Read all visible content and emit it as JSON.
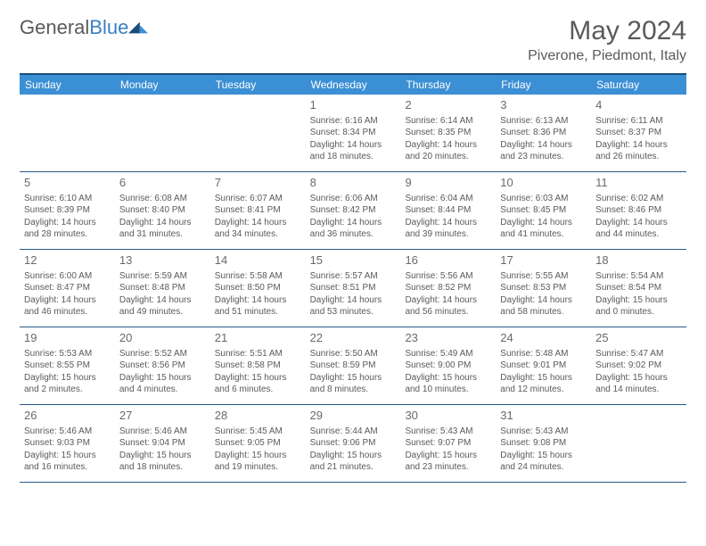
{
  "logo": {
    "text_gray": "General",
    "text_blue": "Blue"
  },
  "title": "May 2024",
  "location": "Piverone, Piedmont, Italy",
  "colors": {
    "header_bg": "#3b8fd4",
    "header_text": "#ffffff",
    "border_dark": "#1a4d7a",
    "row_border": "#2a5a8a",
    "body_text": "#5a5a5a",
    "logo_gray": "#5a5a5a",
    "logo_blue": "#3b7fc4",
    "background": "#ffffff"
  },
  "typography": {
    "title_fontsize": 30,
    "location_fontsize": 16,
    "dayheader_fontsize": 12,
    "daynum_fontsize": 13,
    "body_fontsize": 10
  },
  "day_headers": [
    "Sunday",
    "Monday",
    "Tuesday",
    "Wednesday",
    "Thursday",
    "Friday",
    "Saturday"
  ],
  "weeks": [
    [
      {
        "num": "",
        "sunrise": "",
        "sunset": "",
        "daylight": ""
      },
      {
        "num": "",
        "sunrise": "",
        "sunset": "",
        "daylight": ""
      },
      {
        "num": "",
        "sunrise": "",
        "sunset": "",
        "daylight": ""
      },
      {
        "num": "1",
        "sunrise": "Sunrise: 6:16 AM",
        "sunset": "Sunset: 8:34 PM",
        "daylight": "Daylight: 14 hours and 18 minutes."
      },
      {
        "num": "2",
        "sunrise": "Sunrise: 6:14 AM",
        "sunset": "Sunset: 8:35 PM",
        "daylight": "Daylight: 14 hours and 20 minutes."
      },
      {
        "num": "3",
        "sunrise": "Sunrise: 6:13 AM",
        "sunset": "Sunset: 8:36 PM",
        "daylight": "Daylight: 14 hours and 23 minutes."
      },
      {
        "num": "4",
        "sunrise": "Sunrise: 6:11 AM",
        "sunset": "Sunset: 8:37 PM",
        "daylight": "Daylight: 14 hours and 26 minutes."
      }
    ],
    [
      {
        "num": "5",
        "sunrise": "Sunrise: 6:10 AM",
        "sunset": "Sunset: 8:39 PM",
        "daylight": "Daylight: 14 hours and 28 minutes."
      },
      {
        "num": "6",
        "sunrise": "Sunrise: 6:08 AM",
        "sunset": "Sunset: 8:40 PM",
        "daylight": "Daylight: 14 hours and 31 minutes."
      },
      {
        "num": "7",
        "sunrise": "Sunrise: 6:07 AM",
        "sunset": "Sunset: 8:41 PM",
        "daylight": "Daylight: 14 hours and 34 minutes."
      },
      {
        "num": "8",
        "sunrise": "Sunrise: 6:06 AM",
        "sunset": "Sunset: 8:42 PM",
        "daylight": "Daylight: 14 hours and 36 minutes."
      },
      {
        "num": "9",
        "sunrise": "Sunrise: 6:04 AM",
        "sunset": "Sunset: 8:44 PM",
        "daylight": "Daylight: 14 hours and 39 minutes."
      },
      {
        "num": "10",
        "sunrise": "Sunrise: 6:03 AM",
        "sunset": "Sunset: 8:45 PM",
        "daylight": "Daylight: 14 hours and 41 minutes."
      },
      {
        "num": "11",
        "sunrise": "Sunrise: 6:02 AM",
        "sunset": "Sunset: 8:46 PM",
        "daylight": "Daylight: 14 hours and 44 minutes."
      }
    ],
    [
      {
        "num": "12",
        "sunrise": "Sunrise: 6:00 AM",
        "sunset": "Sunset: 8:47 PM",
        "daylight": "Daylight: 14 hours and 46 minutes."
      },
      {
        "num": "13",
        "sunrise": "Sunrise: 5:59 AM",
        "sunset": "Sunset: 8:48 PM",
        "daylight": "Daylight: 14 hours and 49 minutes."
      },
      {
        "num": "14",
        "sunrise": "Sunrise: 5:58 AM",
        "sunset": "Sunset: 8:50 PM",
        "daylight": "Daylight: 14 hours and 51 minutes."
      },
      {
        "num": "15",
        "sunrise": "Sunrise: 5:57 AM",
        "sunset": "Sunset: 8:51 PM",
        "daylight": "Daylight: 14 hours and 53 minutes."
      },
      {
        "num": "16",
        "sunrise": "Sunrise: 5:56 AM",
        "sunset": "Sunset: 8:52 PM",
        "daylight": "Daylight: 14 hours and 56 minutes."
      },
      {
        "num": "17",
        "sunrise": "Sunrise: 5:55 AM",
        "sunset": "Sunset: 8:53 PM",
        "daylight": "Daylight: 14 hours and 58 minutes."
      },
      {
        "num": "18",
        "sunrise": "Sunrise: 5:54 AM",
        "sunset": "Sunset: 8:54 PM",
        "daylight": "Daylight: 15 hours and 0 minutes."
      }
    ],
    [
      {
        "num": "19",
        "sunrise": "Sunrise: 5:53 AM",
        "sunset": "Sunset: 8:55 PM",
        "daylight": "Daylight: 15 hours and 2 minutes."
      },
      {
        "num": "20",
        "sunrise": "Sunrise: 5:52 AM",
        "sunset": "Sunset: 8:56 PM",
        "daylight": "Daylight: 15 hours and 4 minutes."
      },
      {
        "num": "21",
        "sunrise": "Sunrise: 5:51 AM",
        "sunset": "Sunset: 8:58 PM",
        "daylight": "Daylight: 15 hours and 6 minutes."
      },
      {
        "num": "22",
        "sunrise": "Sunrise: 5:50 AM",
        "sunset": "Sunset: 8:59 PM",
        "daylight": "Daylight: 15 hours and 8 minutes."
      },
      {
        "num": "23",
        "sunrise": "Sunrise: 5:49 AM",
        "sunset": "Sunset: 9:00 PM",
        "daylight": "Daylight: 15 hours and 10 minutes."
      },
      {
        "num": "24",
        "sunrise": "Sunrise: 5:48 AM",
        "sunset": "Sunset: 9:01 PM",
        "daylight": "Daylight: 15 hours and 12 minutes."
      },
      {
        "num": "25",
        "sunrise": "Sunrise: 5:47 AM",
        "sunset": "Sunset: 9:02 PM",
        "daylight": "Daylight: 15 hours and 14 minutes."
      }
    ],
    [
      {
        "num": "26",
        "sunrise": "Sunrise: 5:46 AM",
        "sunset": "Sunset: 9:03 PM",
        "daylight": "Daylight: 15 hours and 16 minutes."
      },
      {
        "num": "27",
        "sunrise": "Sunrise: 5:46 AM",
        "sunset": "Sunset: 9:04 PM",
        "daylight": "Daylight: 15 hours and 18 minutes."
      },
      {
        "num": "28",
        "sunrise": "Sunrise: 5:45 AM",
        "sunset": "Sunset: 9:05 PM",
        "daylight": "Daylight: 15 hours and 19 minutes."
      },
      {
        "num": "29",
        "sunrise": "Sunrise: 5:44 AM",
        "sunset": "Sunset: 9:06 PM",
        "daylight": "Daylight: 15 hours and 21 minutes."
      },
      {
        "num": "30",
        "sunrise": "Sunrise: 5:43 AM",
        "sunset": "Sunset: 9:07 PM",
        "daylight": "Daylight: 15 hours and 23 minutes."
      },
      {
        "num": "31",
        "sunrise": "Sunrise: 5:43 AM",
        "sunset": "Sunset: 9:08 PM",
        "daylight": "Daylight: 15 hours and 24 minutes."
      },
      {
        "num": "",
        "sunrise": "",
        "sunset": "",
        "daylight": ""
      }
    ]
  ]
}
